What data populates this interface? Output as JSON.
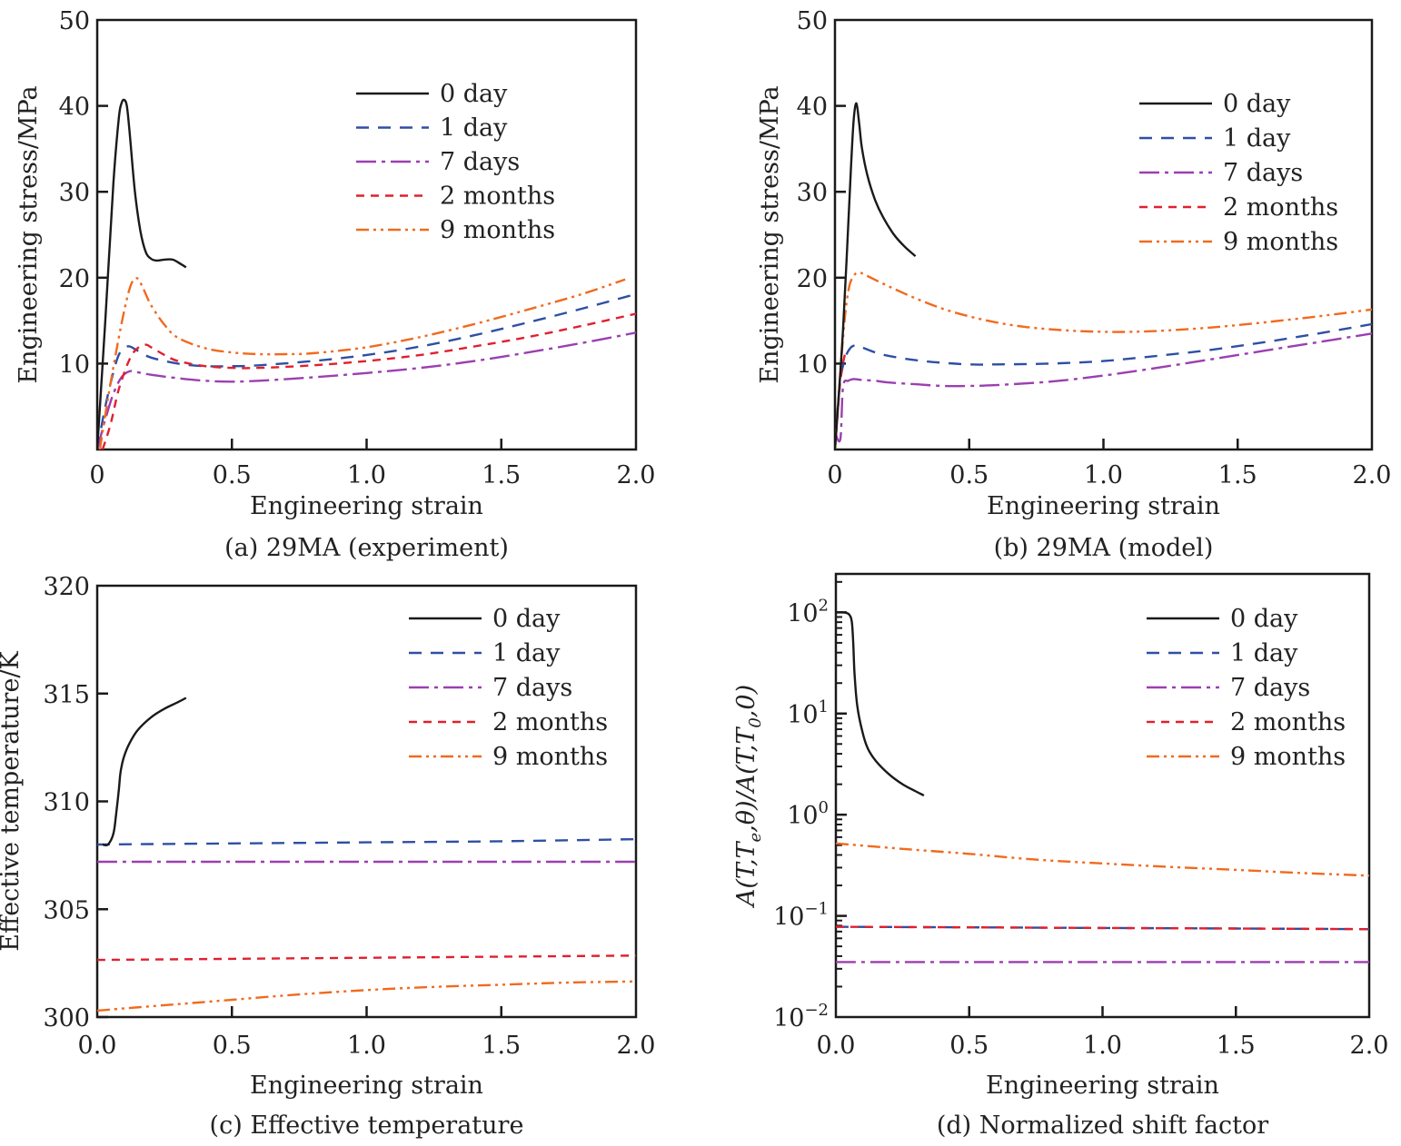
{
  "legend": {
    "entries": [
      {
        "label": "0 day",
        "color": "#1a1a1a",
        "dash": "solid"
      },
      {
        "label": "1 day",
        "color": "#2e4fa3",
        "dash": "dashed"
      },
      {
        "label": "7 days",
        "color": "#9b3fb0",
        "dash": "dashdot"
      },
      {
        "label": "2 months",
        "color": "#e0202e",
        "dash": "shortdash"
      },
      {
        "label": "9 months",
        "color": "#f06a1e",
        "dash": "dashdotdot"
      }
    ]
  },
  "chart_data": [
    {
      "id": "a",
      "type": "line",
      "title": "(a) 29MA (experiment)",
      "xlabel": "Engineering strain",
      "ylabel": "Engineering stress/MPa",
      "xlim": [
        0,
        2.0
      ],
      "ylim": [
        0,
        50
      ],
      "yscale": "linear",
      "xticks": [
        "0",
        "0.5",
        "1.0",
        "1.5",
        "2.0"
      ],
      "xtick_values": [
        0,
        0.5,
        1.0,
        1.5,
        2.0
      ],
      "yticks": [
        "10",
        "20",
        "30",
        "40",
        "50"
      ],
      "ytick_values": [
        10,
        20,
        30,
        40,
        50
      ],
      "legend_position": "top-right",
      "series": [
        {
          "name": "0 day",
          "x": [
            0,
            0.03,
            0.06,
            0.08,
            0.09,
            0.1,
            0.11,
            0.12,
            0.14,
            0.16,
            0.18,
            0.2,
            0.22,
            0.25,
            0.28,
            0.31,
            0.33
          ],
          "y": [
            0,
            15,
            31,
            38.5,
            40.3,
            40.7,
            40,
            37,
            30,
            25.5,
            23,
            22.2,
            22,
            22.1,
            22.1,
            21.6,
            21.2
          ]
        },
        {
          "name": "1 day",
          "x": [
            0,
            0.03,
            0.06,
            0.08,
            0.1,
            0.12,
            0.15,
            0.2,
            0.3,
            0.4,
            0.5,
            0.6,
            0.8,
            1.0,
            1.2,
            1.4,
            1.6,
            1.8,
            2.0
          ],
          "y": [
            0,
            5,
            9,
            11,
            11.8,
            12,
            11.5,
            10.7,
            10,
            9.7,
            9.7,
            9.8,
            10.3,
            11,
            12,
            13.3,
            14.8,
            16.4,
            18.1
          ]
        },
        {
          "name": "7 days",
          "x": [
            0,
            0.03,
            0.06,
            0.09,
            0.12,
            0.15,
            0.2,
            0.3,
            0.4,
            0.5,
            0.6,
            0.8,
            1.0,
            1.2,
            1.4,
            1.6,
            1.8,
            2.0
          ],
          "y": [
            0,
            3.5,
            6.5,
            8.4,
            9.1,
            9.0,
            8.7,
            8.3,
            8.0,
            7.9,
            8.0,
            8.4,
            8.9,
            9.5,
            10.3,
            11.3,
            12.4,
            13.6
          ]
        },
        {
          "name": "2 months",
          "x": [
            0.02,
            0.05,
            0.08,
            0.12,
            0.15,
            0.18,
            0.2,
            0.25,
            0.3,
            0.4,
            0.5,
            0.6,
            0.8,
            1.0,
            1.2,
            1.4,
            1.6,
            1.8,
            2.0
          ],
          "y": [
            0,
            3,
            7,
            10.5,
            11.8,
            12.2,
            11.9,
            11,
            10.3,
            9.7,
            9.5,
            9.5,
            9.8,
            10.3,
            11,
            12,
            13.1,
            14.4,
            15.8
          ]
        },
        {
          "name": "9 months",
          "x": [
            0.01,
            0.04,
            0.08,
            0.11,
            0.13,
            0.15,
            0.17,
            0.2,
            0.25,
            0.3,
            0.4,
            0.5,
            0.6,
            0.7,
            0.8,
            1.0,
            1.2,
            1.4,
            1.6,
            1.8,
            1.96
          ],
          "y": [
            0,
            6,
            13,
            17.5,
            19.5,
            19.9,
            18.8,
            16.8,
            14.5,
            13,
            11.8,
            11.3,
            11.1,
            11.1,
            11.2,
            11.9,
            13.1,
            14.6,
            16.3,
            18.1,
            19.8
          ]
        }
      ]
    },
    {
      "id": "b",
      "type": "line",
      "title": "(b) 29MA (model)",
      "xlabel": "Engineering strain",
      "ylabel": "Engineering stress/MPa",
      "xlim": [
        0,
        2.0
      ],
      "ylim": [
        0,
        50
      ],
      "yscale": "linear",
      "xticks": [
        "0",
        "0.5",
        "1.0",
        "1.5",
        "2.0"
      ],
      "xtick_values": [
        0,
        0.5,
        1.0,
        1.5,
        2.0
      ],
      "yticks": [
        "10",
        "20",
        "30",
        "40",
        "50"
      ],
      "ytick_values": [
        10,
        20,
        30,
        40,
        50
      ],
      "legend_position": "top-right",
      "series": [
        {
          "name": "0 day",
          "x": [
            0,
            0.03,
            0.06,
            0.07,
            0.08,
            0.09,
            0.1,
            0.12,
            0.15,
            0.18,
            0.22,
            0.26,
            0.3
          ],
          "y": [
            0,
            14,
            33,
            38.5,
            40.3,
            38,
            35.2,
            32,
            29,
            27,
            25,
            23.6,
            22.5
          ]
        },
        {
          "name": "1 day",
          "x": [
            0,
            0.02,
            0.04,
            0.06,
            0.08,
            0.1,
            0.15,
            0.2,
            0.3,
            0.4,
            0.5,
            0.6,
            0.8,
            1.0,
            1.2,
            1.4,
            1.6,
            1.8,
            2.0
          ],
          "y": [
            1,
            8,
            10.8,
            11.9,
            12.1,
            11.9,
            11.3,
            10.9,
            10.4,
            10.1,
            9.9,
            9.9,
            10.0,
            10.3,
            10.9,
            11.6,
            12.5,
            13.5,
            14.6
          ]
        },
        {
          "name": "7 days",
          "x": [
            0,
            0.02,
            0.03,
            0.05,
            0.07,
            0.1,
            0.15,
            0.2,
            0.3,
            0.4,
            0.5,
            0.6,
            0.8,
            1.0,
            1.2,
            1.4,
            1.6,
            1.8,
            2.0
          ],
          "y": [
            2,
            1.2,
            7.3,
            8.0,
            8.2,
            8.1,
            8.0,
            7.8,
            7.6,
            7.4,
            7.4,
            7.5,
            7.9,
            8.6,
            9.5,
            10.5,
            11.5,
            12.5,
            13.5
          ]
        },
        {
          "name": "2 months",
          "x": [
            0,
            0.02,
            0.04
          ],
          "y": [
            0,
            8,
            11.5
          ]
        },
        {
          "name": "9 months",
          "x": [
            0,
            0.03,
            0.05,
            0.07,
            0.09,
            0.12,
            0.2,
            0.3,
            0.4,
            0.5,
            0.6,
            0.7,
            0.8,
            0.9,
            1.0,
            1.1,
            1.2,
            1.4,
            1.6,
            1.8,
            2.0
          ],
          "y": [
            0,
            13,
            18.5,
            20.2,
            20.6,
            20.2,
            19.0,
            17.6,
            16.4,
            15.5,
            14.8,
            14.3,
            14.0,
            13.8,
            13.7,
            13.7,
            13.8,
            14.2,
            14.8,
            15.5,
            16.3
          ]
        }
      ]
    },
    {
      "id": "c",
      "type": "line",
      "title": "(c) Effective temperature",
      "xlabel": "Engineering strain",
      "ylabel": "Effective temperature/K",
      "xlim": [
        0,
        2.0
      ],
      "ylim": [
        300,
        320
      ],
      "yscale": "linear",
      "xticks": [
        "0.0",
        "0.5",
        "1.0",
        "1.5",
        "2.0"
      ],
      "xtick_values": [
        0,
        0.5,
        1.0,
        1.5,
        2.0
      ],
      "yticks": [
        "300",
        "305",
        "310",
        "315",
        "320"
      ],
      "ytick_values": [
        300,
        305,
        310,
        315,
        320
      ],
      "legend_position": "top-right",
      "series": [
        {
          "name": "0 day",
          "x": [
            0.02,
            0.04,
            0.06,
            0.07,
            0.08,
            0.085,
            0.09,
            0.1,
            0.12,
            0.15,
            0.2,
            0.25,
            0.3,
            0.33
          ],
          "y": [
            308.0,
            308.0,
            308.5,
            309.4,
            310.5,
            311.2,
            311.6,
            312.1,
            312.7,
            313.3,
            313.9,
            314.3,
            314.6,
            314.8
          ]
        },
        {
          "name": "1 day",
          "x": [
            0,
            0.5,
            1.0,
            1.5,
            2.0
          ],
          "y": [
            308.0,
            308.05,
            308.1,
            308.15,
            308.25
          ]
        },
        {
          "name": "7 days",
          "x": [
            0,
            0.5,
            1.0,
            1.5,
            2.0
          ],
          "y": [
            307.2,
            307.2,
            307.2,
            307.2,
            307.2
          ]
        },
        {
          "name": "2 months",
          "x": [
            0,
            0.5,
            1.0,
            1.5,
            2.0
          ],
          "y": [
            302.65,
            302.7,
            302.75,
            302.8,
            302.85
          ]
        },
        {
          "name": "9 months",
          "x": [
            0,
            0.25,
            0.5,
            0.75,
            1.0,
            1.25,
            1.5,
            1.75,
            2.0
          ],
          "y": [
            300.3,
            300.55,
            300.8,
            301.05,
            301.25,
            301.4,
            301.5,
            301.6,
            301.65
          ]
        }
      ]
    },
    {
      "id": "d",
      "type": "line",
      "title": "(d) Normalized shift factor",
      "xlabel": "Engineering strain",
      "ylabel": "A(T,Te,θ)/A(T,T0,0)",
      "xlim": [
        0,
        2.0
      ],
      "ylim": [
        0.01,
        240
      ],
      "yscale": "log",
      "xticks": [
        "0.0",
        "0.5",
        "1.0",
        "1.5",
        "2.0"
      ],
      "xtick_values": [
        0,
        0.5,
        1.0,
        1.5,
        2.0
      ],
      "yticks": [
        "10^-2",
        "10^-1",
        "10^0",
        "10^1",
        "10^2"
      ],
      "ytick_values": [
        0.01,
        0.1,
        1,
        10,
        100
      ],
      "legend_position": "top-right",
      "series": [
        {
          "name": "0 day",
          "x": [
            0.0,
            0.03,
            0.05,
            0.06,
            0.065,
            0.07,
            0.08,
            0.1,
            0.12,
            0.15,
            0.2,
            0.25,
            0.3,
            0.33
          ],
          "y": [
            100,
            100,
            95,
            80,
            50,
            25,
            12,
            6.5,
            4.5,
            3.4,
            2.5,
            2.0,
            1.7,
            1.55
          ]
        },
        {
          "name": "1 day",
          "x": [
            0,
            0.5,
            1.0,
            1.5,
            2.0
          ],
          "y": [
            0.078,
            0.077,
            0.076,
            0.075,
            0.074
          ]
        },
        {
          "name": "7 days",
          "x": [
            0,
            0.5,
            1.0,
            1.5,
            2.0
          ],
          "y": [
            0.035,
            0.035,
            0.035,
            0.035,
            0.035
          ]
        },
        {
          "name": "2 months",
          "x": [
            0,
            0.5,
            1.0,
            1.5,
            2.0
          ],
          "y": [
            0.078,
            0.077,
            0.076,
            0.075,
            0.074
          ]
        },
        {
          "name": "9 months",
          "x": [
            0,
            0.25,
            0.5,
            0.75,
            1.0,
            1.25,
            1.5,
            1.75,
            2.0
          ],
          "y": [
            0.52,
            0.46,
            0.41,
            0.36,
            0.33,
            0.305,
            0.285,
            0.265,
            0.25
          ]
        }
      ]
    }
  ]
}
